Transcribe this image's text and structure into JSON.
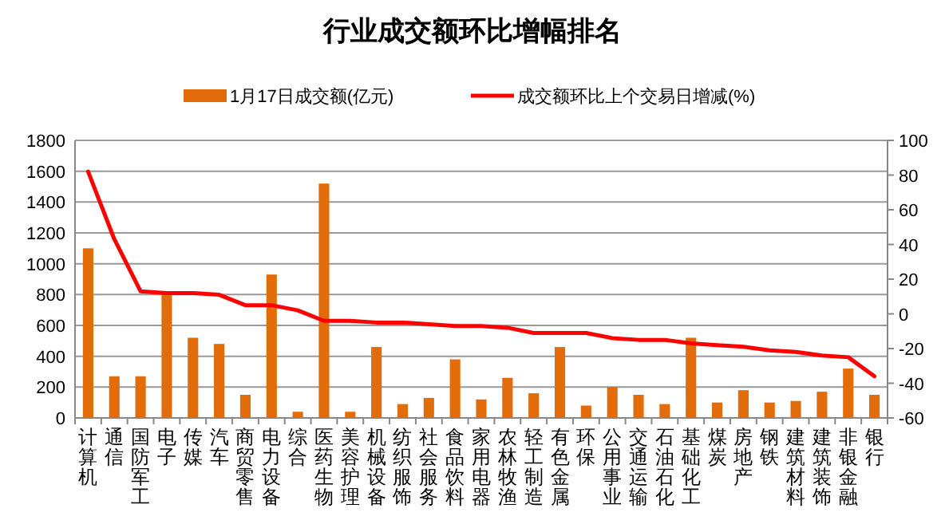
{
  "chart_data": {
    "type": "bar",
    "title": "行业成交额环比增幅排名",
    "categories": [
      "计算机",
      "通信",
      "国防军工",
      "电子",
      "传媒",
      "汽车",
      "商贸零售",
      "电力设备",
      "综合",
      "医药生物",
      "美容护理",
      "机械设备",
      "纺织服饰",
      "社会服务",
      "食品饮料",
      "家用电器",
      "农林牧渔",
      "轻工制造",
      "有色金属",
      "环保",
      "公用事业",
      "交通运输",
      "石油石化",
      "基础化工",
      "煤炭",
      "房地产",
      "钢铁",
      "建筑材料",
      "建筑装饰",
      "非银金融",
      "银行"
    ],
    "series": [
      {
        "name": "1月17日成交额(亿元)",
        "color": "#e36c0a",
        "values": [
          1100,
          270,
          270,
          810,
          520,
          480,
          150,
          930,
          40,
          1520,
          40,
          460,
          90,
          130,
          380,
          120,
          260,
          160,
          460,
          80,
          200,
          150,
          90,
          520,
          100,
          180,
          100,
          110,
          170,
          320,
          150
        ]
      },
      {
        "name": "成交额环比上个交易日增减(%)",
        "type": "line",
        "axis": "y2",
        "color": "#ff0000",
        "values": [
          82,
          43,
          13,
          12,
          12,
          11,
          5,
          5,
          2,
          -4,
          -4,
          -5,
          -5,
          -6,
          -7,
          -7,
          -8,
          -11,
          -11,
          -11,
          -14,
          -15,
          -15,
          -17,
          -18,
          -19,
          -21,
          -22,
          -24,
          -25,
          -36
        ]
      }
    ],
    "ylim": [
      0,
      1800
    ],
    "yticks": [
      0,
      200,
      400,
      600,
      800,
      1000,
      1200,
      1400,
      1600,
      1800
    ],
    "y2lim": [
      -60,
      100
    ],
    "y2ticks": [
      -60,
      -40,
      -20,
      0,
      20,
      40,
      60,
      80,
      100
    ],
    "grid": "y",
    "legend": "top"
  }
}
